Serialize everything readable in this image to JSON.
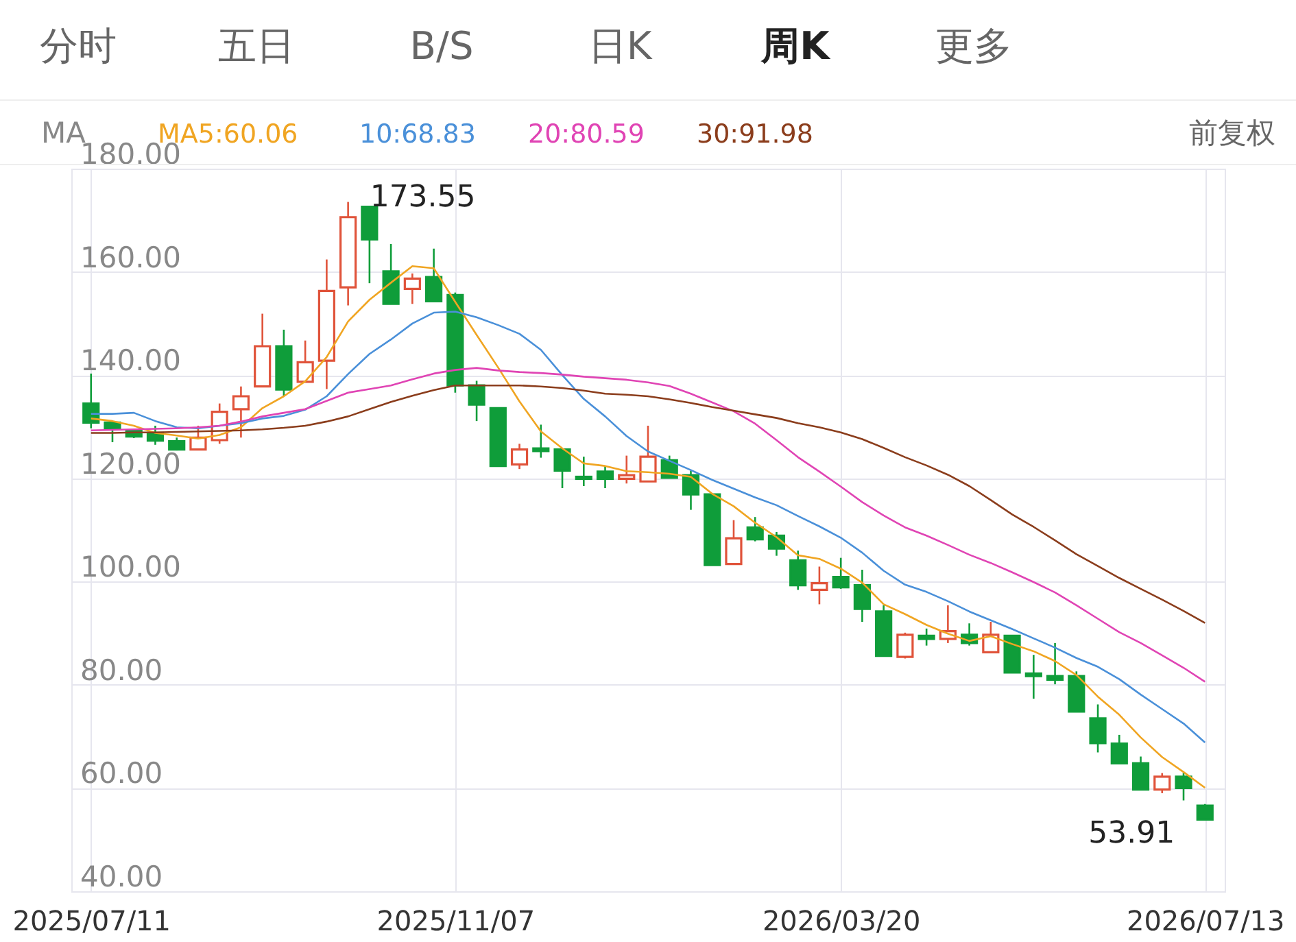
{
  "chart_data": {
    "type": "candlestick",
    "categories": [
      "2025/07/11",
      null,
      null,
      null,
      null,
      null,
      null,
      null,
      null,
      null,
      null,
      null,
      null,
      null,
      null,
      null,
      null,
      "2025/11/07",
      null,
      null,
      null,
      null,
      null,
      null,
      null,
      null,
      null,
      null,
      null,
      null,
      null,
      null,
      null,
      null,
      null,
      "2026/03/20",
      null,
      null,
      null,
      null,
      null,
      null,
      null,
      null,
      null,
      null,
      null,
      null,
      null,
      null,
      null,
      null,
      "2026/07/13"
    ],
    "ohlc": [
      [
        134.5,
        140.3,
        129.7,
        130.8
      ],
      [
        130.8,
        131.1,
        127.0,
        129.5
      ],
      [
        129.3,
        129.5,
        127.8,
        128.1
      ],
      [
        128.8,
        130.2,
        126.5,
        127.3
      ],
      [
        127.2,
        127.9,
        125.4,
        125.6
      ],
      [
        125.6,
        130.2,
        125.6,
        127.9
      ],
      [
        127.4,
        134.5,
        126.7,
        132.9
      ],
      [
        133.4,
        137.8,
        127.9,
        135.9
      ],
      [
        137.8,
        151.9,
        137.8,
        145.6
      ],
      [
        145.6,
        148.8,
        135.9,
        137.2
      ],
      [
        138.7,
        146.7,
        138.7,
        142.5
      ],
      [
        142.8,
        162.4,
        137.3,
        156.3
      ],
      [
        157.0,
        173.55,
        153.5,
        170.6
      ],
      [
        172.6,
        172.6,
        157.8,
        166.3
      ],
      [
        160.1,
        165.4,
        153.8,
        153.8
      ],
      [
        156.7,
        159.7,
        153.8,
        158.7
      ],
      [
        159.0,
        164.5,
        154.3,
        154.3
      ],
      [
        155.5,
        156.0,
        136.6,
        138.0
      ],
      [
        138.0,
        138.9,
        131.1,
        134.3
      ],
      [
        133.6,
        133.6,
        122.4,
        122.4
      ],
      [
        122.7,
        126.7,
        121.8,
        125.6
      ],
      [
        125.8,
        130.4,
        124.0,
        125.3
      ],
      [
        125.6,
        125.6,
        118.1,
        121.5
      ],
      [
        120.3,
        124.2,
        118.5,
        119.9
      ],
      [
        121.3,
        122.4,
        118.1,
        119.9
      ],
      [
        119.9,
        124.4,
        119.0,
        120.6
      ],
      [
        119.4,
        130.2,
        119.4,
        124.2
      ],
      [
        123.5,
        124.4,
        120.1,
        120.1
      ],
      [
        120.6,
        121.5,
        113.9,
        116.9
      ],
      [
        116.9,
        116.9,
        103.2,
        103.2
      ],
      [
        103.4,
        111.9,
        103.4,
        108.4
      ],
      [
        110.5,
        112.5,
        107.8,
        108.2
      ],
      [
        108.9,
        109.6,
        105.0,
        106.4
      ],
      [
        104.1,
        106.0,
        98.4,
        99.3
      ],
      [
        98.4,
        102.9,
        95.6,
        99.7
      ],
      [
        100.9,
        104.6,
        98.6,
        98.9
      ],
      [
        99.3,
        102.3,
        92.2,
        94.7
      ],
      [
        94.2,
        95.4,
        85.6,
        85.6
      ],
      [
        85.4,
        90.1,
        85.1,
        89.7
      ],
      [
        89.5,
        90.9,
        87.6,
        88.9
      ],
      [
        88.9,
        95.4,
        88.1,
        90.4
      ],
      [
        89.7,
        91.9,
        87.6,
        88.1
      ],
      [
        86.3,
        92.2,
        86.3,
        89.7
      ],
      [
        89.5,
        89.5,
        82.4,
        82.4
      ],
      [
        82.2,
        85.8,
        77.3,
        81.7
      ],
      [
        81.7,
        88.1,
        80.1,
        81.0
      ],
      [
        81.7,
        82.6,
        74.8,
        74.8
      ],
      [
        73.5,
        76.2,
        66.9,
        68.7
      ],
      [
        68.6,
        70.3,
        64.8,
        64.8
      ],
      [
        64.8,
        66.1,
        59.7,
        59.7
      ],
      [
        59.7,
        62.9,
        59.0,
        62.2
      ],
      [
        62.2,
        62.9,
        57.6,
        60.0
      ],
      [
        56.6,
        56.9,
        53.91,
        53.91
      ]
    ],
    "colors": [
      "#0f9d3a",
      "#0f9d3a",
      "#0f9d3a",
      "#0f9d3a",
      "#0f9d3a",
      "#e0533a",
      "#e0533a",
      "#e0533a",
      "#e0533a",
      "#0f9d3a",
      "#e0533a",
      "#e0533a",
      "#e0533a",
      "#0f9d3a",
      "#0f9d3a",
      "#e0533a",
      "#0f9d3a",
      "#0f9d3a",
      "#0f9d3a",
      "#0f9d3a",
      "#e0533a",
      "#0f9d3a",
      "#0f9d3a",
      "#0f9d3a",
      "#0f9d3a",
      "#e0533a",
      "#e0533a",
      "#0f9d3a",
      "#0f9d3a",
      "#0f9d3a",
      "#e0533a",
      "#0f9d3a",
      "#0f9d3a",
      "#0f9d3a",
      "#e0533a",
      "#0f9d3a",
      "#0f9d3a",
      "#0f9d3a",
      "#e0533a",
      "#0f9d3a",
      "#e0533a",
      "#0f9d3a",
      "#e0533a",
      "#0f9d3a",
      "#0f9d3a",
      "#0f9d3a",
      "#0f9d3a",
      "#0f9d3a",
      "#0f9d3a",
      "#0f9d3a",
      "#e0533a",
      "#0f9d3a",
      "#0f9d3a"
    ],
    "series": [
      {
        "name": "MA5:60.06",
        "type": "line",
        "color": "#f0a522",
        "values": [
          131.6,
          131.1,
          130.2,
          128.8,
          128.3,
          127.7,
          128.4,
          129.9,
          133.6,
          135.9,
          138.8,
          143.5,
          150.4,
          154.6,
          157.9,
          161.1,
          160.7,
          154.2,
          147.8,
          141.5,
          134.9,
          129.1,
          125.8,
          122.9,
          122.4,
          121.4,
          121.2,
          120.9,
          120.3,
          117.0,
          114.6,
          111.4,
          108.6,
          105.1,
          104.4,
          102.5,
          99.8,
          95.6,
          93.7,
          91.6,
          89.9,
          88.5,
          89.4,
          87.9,
          86.5,
          84.6,
          81.9,
          77.7,
          74.2,
          69.8,
          66.0,
          63.1,
          60.06
        ]
      },
      {
        "name": "10:68.83",
        "type": "line",
        "color": "#4a90d9",
        "values": [
          132.5,
          132.5,
          132.7,
          131.1,
          129.9,
          129.7,
          130.2,
          130.7,
          131.6,
          132.1,
          133.3,
          135.9,
          140.2,
          144.1,
          146.9,
          150.0,
          152.1,
          152.3,
          151.2,
          149.7,
          148.0,
          144.9,
          140.0,
          135.4,
          132.0,
          128.2,
          125.2,
          123.4,
          121.6,
          119.7,
          118.0,
          116.3,
          114.8,
          112.7,
          110.7,
          108.5,
          105.6,
          102.1,
          99.4,
          98.0,
          96.2,
          94.2,
          92.5,
          90.8,
          89.0,
          87.2,
          85.2,
          83.5,
          81.1,
          78.1,
          75.3,
          72.5,
          68.83
        ]
      },
      {
        "name": "20:80.59",
        "type": "line",
        "color": "#e044b4",
        "values": [
          129.3,
          129.4,
          129.5,
          129.6,
          129.7,
          129.9,
          130.2,
          131.0,
          132.0,
          132.7,
          133.4,
          135.0,
          136.6,
          137.3,
          138.0,
          139.2,
          140.3,
          141.0,
          141.4,
          140.9,
          140.6,
          140.4,
          140.1,
          139.7,
          139.4,
          139.1,
          138.6,
          137.9,
          136.4,
          134.7,
          133.0,
          130.6,
          127.4,
          124.1,
          121.3,
          118.4,
          115.4,
          112.8,
          110.5,
          108.9,
          107.1,
          105.2,
          103.6,
          101.8,
          99.9,
          97.9,
          95.4,
          92.8,
          90.2,
          88.1,
          85.7,
          83.3,
          80.59
        ]
      },
      {
        "name": "30:91.98",
        "type": "line",
        "color": "#8b3d1c",
        "values": [
          128.8,
          128.8,
          128.9,
          128.9,
          129.0,
          129.1,
          129.2,
          129.3,
          129.5,
          129.8,
          130.2,
          131.0,
          132.0,
          133.4,
          134.8,
          136.0,
          137.1,
          138.0,
          138.0,
          138.0,
          138.0,
          137.8,
          137.5,
          137.0,
          136.4,
          136.2,
          135.9,
          135.3,
          134.6,
          133.8,
          133.1,
          132.4,
          131.7,
          130.7,
          129.9,
          128.9,
          127.6,
          125.9,
          124.1,
          122.5,
          120.7,
          118.5,
          115.8,
          113.0,
          110.6,
          108.0,
          105.3,
          103.0,
          100.7,
          98.6,
          96.5,
          94.3,
          91.98
        ]
      }
    ],
    "ylim": [
      40,
      180
    ],
    "yticks": [
      {
        "value": 40,
        "label": "40.00"
      },
      {
        "value": 60,
        "label": "60.00"
      },
      {
        "value": 80,
        "label": "80.00"
      },
      {
        "value": 100,
        "label": "100.00"
      },
      {
        "value": 120,
        "label": "120.00"
      },
      {
        "value": 140,
        "label": "140.00"
      },
      {
        "value": 160,
        "label": "160.00"
      },
      {
        "value": 180,
        "label": "180.00"
      }
    ],
    "grid": true,
    "legend": "top left",
    "annotations": [
      "分时",
      "五日",
      "B/S",
      "日K",
      "周K",
      "更多",
      "MA",
      "前复权",
      "173.55",
      "53.91"
    ]
  }
}
